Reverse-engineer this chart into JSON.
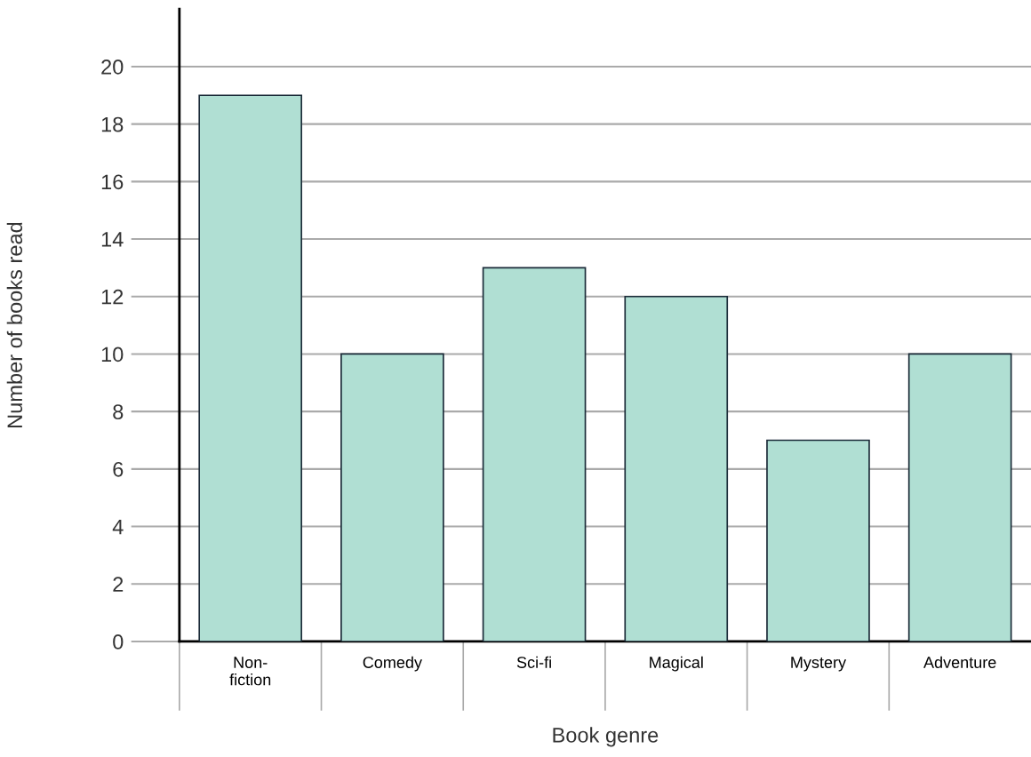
{
  "chart_data": {
    "type": "bar",
    "xlabel": "Book genre",
    "ylabel": "Number of books read",
    "categories": [
      "Non-\nfiction",
      "Comedy",
      "Sci-fi",
      "Magical",
      "Mystery",
      "Adventure"
    ],
    "values": [
      19,
      10,
      13,
      12,
      7,
      10
    ],
    "color": "#b0dfd3",
    "ylim": [
      0,
      22
    ],
    "yticks": [
      0,
      2,
      4,
      6,
      8,
      10,
      12,
      14,
      16,
      18,
      20
    ],
    "grid": "y"
  }
}
